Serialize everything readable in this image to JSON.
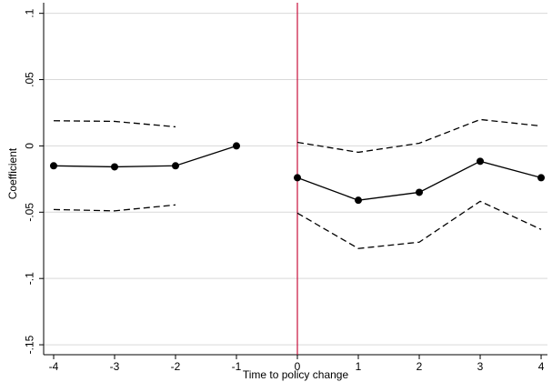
{
  "chart_data": {
    "type": "line",
    "x_label": "Time to policy change",
    "y_label": "Coefficient",
    "x": [
      -4,
      -3,
      -2,
      -1,
      0,
      1,
      2,
      3,
      4
    ],
    "series": [
      {
        "color": "#000000",
        "dash": "solid",
        "markers": true,
        "values": [
          -0.015,
          -0.0158,
          -0.015,
          0.0,
          null,
          null,
          null,
          null,
          null
        ]
      },
      {
        "color": "#000000",
        "dash": "solid",
        "markers": true,
        "values": [
          null,
          null,
          null,
          null,
          -0.024,
          -0.041,
          -0.035,
          -0.0116,
          -0.024
        ]
      },
      {
        "color": "#000000",
        "dash": "dashed",
        "markers": false,
        "values": [
          0.019,
          0.0185,
          0.0144,
          null,
          0.0027,
          -0.0048,
          0.002,
          0.0199,
          0.015
        ]
      },
      {
        "color": "#000000",
        "dash": "dashed",
        "markers": false,
        "values": [
          -0.048,
          -0.049,
          -0.0445,
          null,
          -0.0507,
          -0.0774,
          -0.0726,
          -0.0418,
          -0.063
        ]
      }
    ],
    "xlim": [
      -4.164,
      4.104
    ],
    "ylim": [
      -0.1575,
      0.108
    ],
    "xticks": [
      -4,
      -3,
      -2,
      -1,
      0,
      1,
      2,
      3,
      4
    ],
    "yticks": [
      {
        "value": -0.15,
        "label": "-.15"
      },
      {
        "value": -0.1,
        "label": "-.1"
      },
      {
        "value": -0.05,
        "label": "-.05"
      },
      0,
      {
        "value": 0.05,
        "label": ".05"
      },
      {
        "value": 0.1,
        "label": ".1"
      }
    ],
    "grid": true,
    "reference_line": {
      "x": 0,
      "color": "#c8103c"
    }
  }
}
